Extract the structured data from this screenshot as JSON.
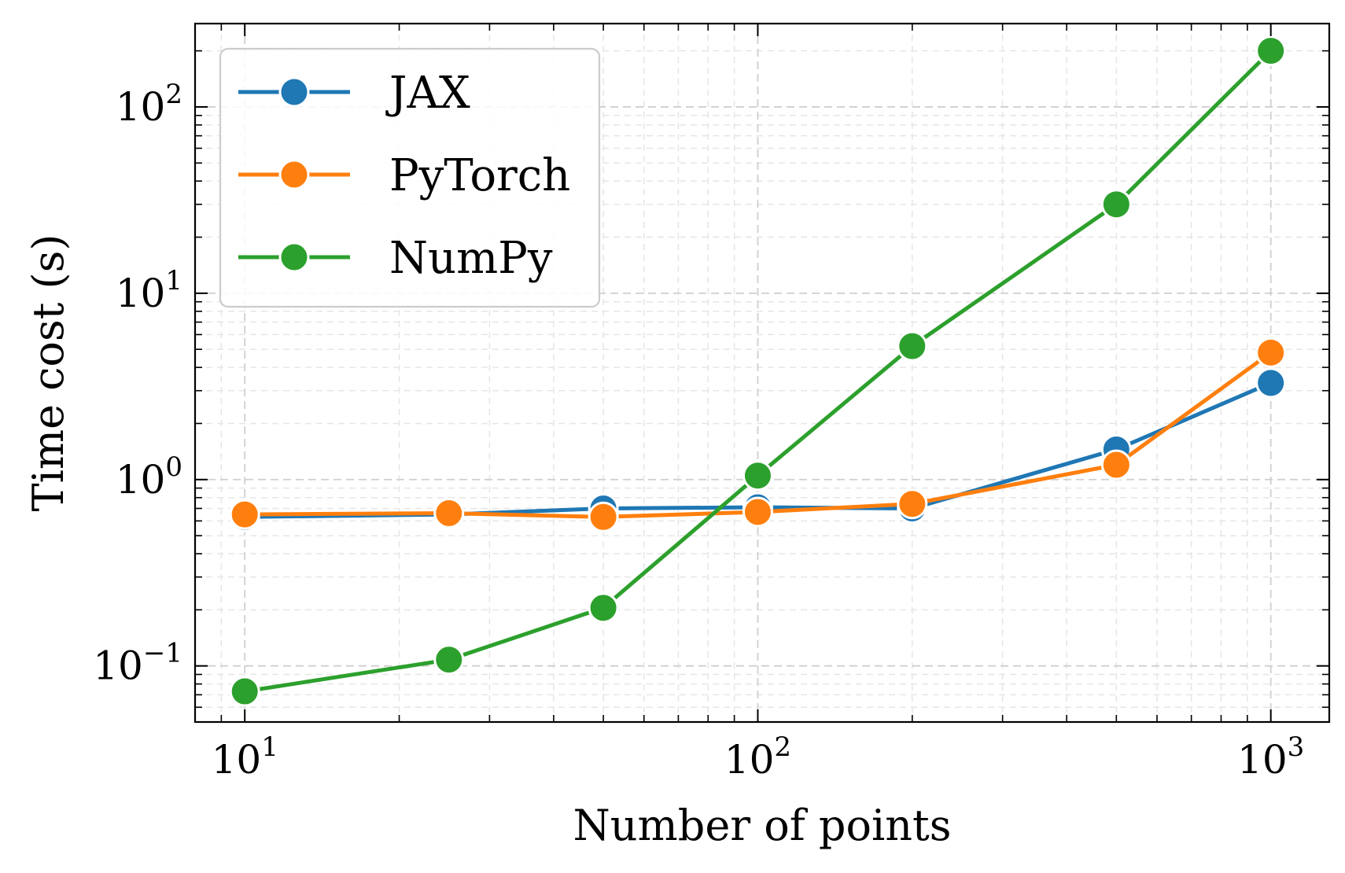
{
  "chart_data": {
    "type": "line",
    "title": "",
    "xlabel": "Number of points",
    "ylabel": "Time cost (s)",
    "xscale": "log",
    "yscale": "log",
    "xlim": [
      8,
      1300
    ],
    "ylim": [
      0.05,
      280
    ],
    "grid": true,
    "legend_position": "top-left",
    "x": [
      10,
      25,
      50,
      100,
      200,
      500,
      1000
    ],
    "x_ticks": [
      {
        "value": 10,
        "base": "10",
        "exp": "1"
      },
      {
        "value": 100,
        "base": "10",
        "exp": "2"
      },
      {
        "value": 1000,
        "base": "10",
        "exp": "3"
      }
    ],
    "y_ticks": [
      {
        "value": 0.1,
        "base": "10",
        "exp": "−1"
      },
      {
        "value": 1,
        "base": "10",
        "exp": "0"
      },
      {
        "value": 10,
        "base": "10",
        "exp": "1"
      },
      {
        "value": 100,
        "base": "10",
        "exp": "2"
      }
    ],
    "series": [
      {
        "name": "JAX",
        "color": "#1f77b4",
        "values": [
          0.63,
          0.65,
          0.7,
          0.71,
          0.7,
          1.45,
          3.3
        ]
      },
      {
        "name": "PyTorch",
        "color": "#ff7f0e",
        "values": [
          0.65,
          0.66,
          0.63,
          0.67,
          0.74,
          1.2,
          4.8
        ]
      },
      {
        "name": "NumPy",
        "color": "#2ca02c",
        "values": [
          0.073,
          0.108,
          0.205,
          1.05,
          5.2,
          30,
          200
        ]
      }
    ]
  }
}
